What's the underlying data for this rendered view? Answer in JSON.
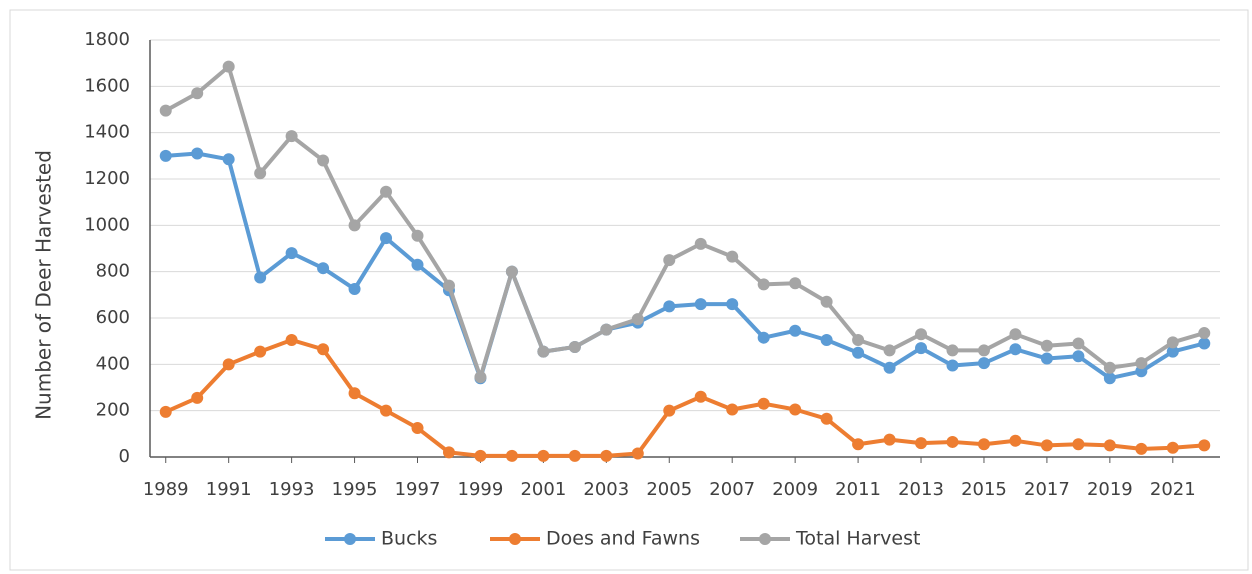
{
  "chart_data": {
    "type": "line",
    "y_label": "Number of Deer Harvested",
    "x": [
      1989,
      1990,
      1991,
      1992,
      1993,
      1994,
      1995,
      1996,
      1997,
      1998,
      1999,
      2000,
      2001,
      2002,
      2003,
      2004,
      2005,
      2006,
      2007,
      2008,
      2009,
      2010,
      2011,
      2012,
      2013,
      2014,
      2015,
      2016,
      2017,
      2018,
      2019,
      2020,
      2021,
      2022
    ],
    "xlim": [
      1988.5,
      2022.5
    ],
    "xticks": [
      1989,
      1991,
      1993,
      1995,
      1997,
      1999,
      2001,
      2003,
      2005,
      2007,
      2009,
      2011,
      2013,
      2015,
      2017,
      2019,
      2021
    ],
    "ylim": [
      0,
      1800
    ],
    "yticks": [
      0,
      200,
      400,
      600,
      800,
      1000,
      1200,
      1400,
      1600,
      1800
    ],
    "grid": true,
    "legend": "bottom",
    "series": [
      {
        "name": "Bucks",
        "color": "#5b9bd5",
        "values": [
          1300,
          1310,
          1285,
          775,
          880,
          815,
          725,
          945,
          830,
          720,
          340,
          800,
          455,
          475,
          550,
          580,
          650,
          660,
          660,
          515,
          545,
          505,
          450,
          385,
          470,
          395,
          405,
          465,
          425,
          435,
          340,
          370,
          455,
          490
        ]
      },
      {
        "name": "Does and Fawns",
        "color": "#ed7d31",
        "values": [
          195,
          255,
          400,
          455,
          505,
          465,
          275,
          200,
          125,
          20,
          5,
          5,
          5,
          5,
          5,
          15,
          200,
          260,
          205,
          230,
          205,
          165,
          55,
          75,
          60,
          65,
          55,
          70,
          50,
          55,
          50,
          35,
          40,
          50
        ]
      },
      {
        "name": "Total Harvest",
        "color": "#a5a5a5",
        "values": [
          1495,
          1570,
          1685,
          1225,
          1385,
          1280,
          1000,
          1145,
          955,
          740,
          345,
          800,
          455,
          475,
          550,
          595,
          850,
          920,
          865,
          745,
          750,
          670,
          505,
          460,
          530,
          460,
          460,
          530,
          480,
          490,
          385,
          405,
          495,
          535
        ]
      }
    ]
  }
}
